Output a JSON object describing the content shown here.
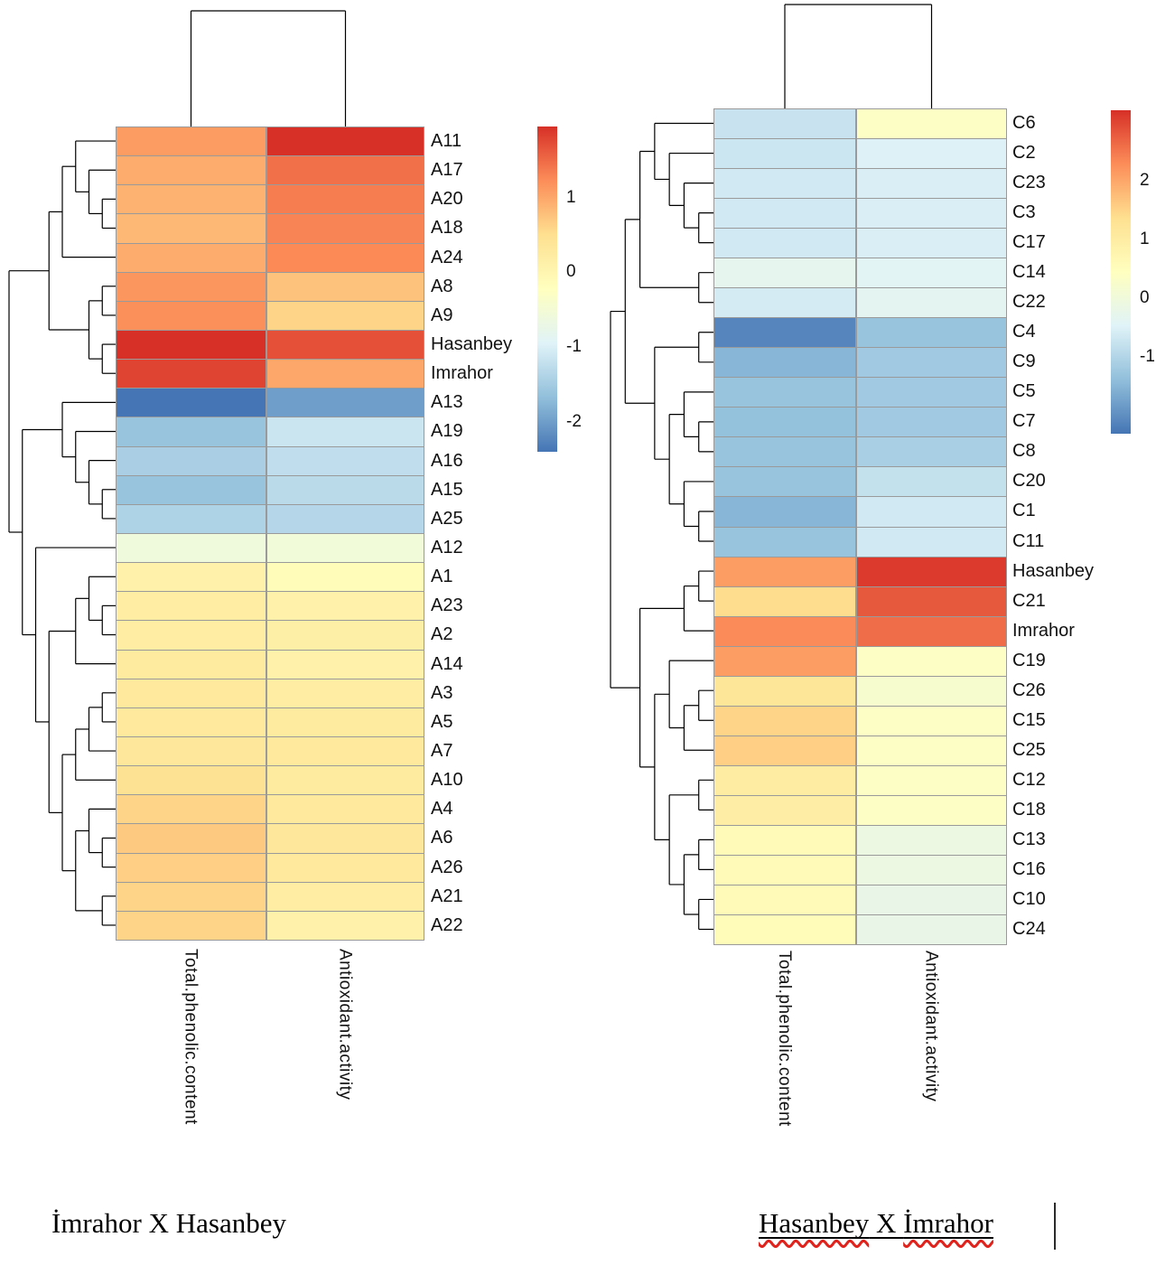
{
  "colormap": [
    "#4575b4",
    "#91bfdb",
    "#e0f3f8",
    "#ffffbf",
    "#fee090",
    "#fc8d59",
    "#d73027"
  ],
  "captions": {
    "left": "İmrahor X Hasanbey",
    "right_word1": "Hasanbey",
    "right_x": " X ",
    "right_word2": "İmrahor"
  },
  "chart_data": [
    {
      "type": "heatmap",
      "title": "İmrahor X Hasanbey",
      "columns": [
        "Total.phenolic.content",
        "Antioxidant.activity"
      ],
      "rows": [
        "A11",
        "A17",
        "A20",
        "A18",
        "A24",
        "A8",
        "A9",
        "Hasanbey",
        "Imrahor",
        "A13",
        "A19",
        "A16",
        "A15",
        "A25",
        "A12",
        "A1",
        "A23",
        "A2",
        "A14",
        "A3",
        "A5",
        "A7",
        "A10",
        "A4",
        "A6",
        "A26",
        "A21",
        "A22"
      ],
      "values": [
        [
          1.1,
          1.95
        ],
        [
          0.95,
          1.45
        ],
        [
          0.9,
          1.35
        ],
        [
          0.85,
          1.3
        ],
        [
          0.95,
          1.25
        ],
        [
          1.15,
          0.75
        ],
        [
          1.2,
          0.6
        ],
        [
          1.95,
          1.7
        ],
        [
          1.8,
          1.0
        ],
        [
          -2.4,
          -2.0
        ],
        [
          -1.6,
          -1.15
        ],
        [
          -1.45,
          -1.25
        ],
        [
          -1.6,
          -1.3
        ],
        [
          -1.4,
          -1.35
        ],
        [
          -0.6,
          -0.55
        ],
        [
          0.1,
          -0.15
        ],
        [
          0.2,
          0.1
        ],
        [
          0.2,
          0.15
        ],
        [
          0.25,
          0.1
        ],
        [
          0.3,
          0.2
        ],
        [
          0.3,
          0.25
        ],
        [
          0.35,
          0.3
        ],
        [
          0.45,
          0.25
        ],
        [
          0.6,
          0.3
        ],
        [
          0.7,
          0.35
        ],
        [
          0.65,
          0.3
        ],
        [
          0.6,
          0.2
        ],
        [
          0.6,
          0.1
        ]
      ],
      "zlim": [
        -2.4,
        1.95
      ],
      "legend_ticks": [
        1,
        0,
        -1,
        -2
      ],
      "grid": true,
      "legend_position": "right",
      "row_dendrogram": [
        [
          [
            [
              "A11",
              [
                "A17",
                [
                  "A20",
                  "A18"
                ]
              ]
            ],
            "A24"
          ],
          [
            [
              "A8",
              "A9"
            ],
            [
              "Hasanbey",
              "Imrahor"
            ]
          ]
        ],
        [
          [
            "A13",
            [
              "A19",
              [
                "A16",
                [
                  "A15",
                  "A25"
                ]
              ]
            ]
          ],
          [
            "A12",
            [
              [
                [
                  "A1",
                  [
                    "A23",
                    "A2"
                  ]
                ],
                "A14"
              ],
              [
                [
                  [
                    [
                      "A3",
                      "A5"
                    ],
                    "A7"
                  ],
                  "A10"
                ],
                [
                  [
                    "A4",
                    [
                      "A6",
                      "A26"
                    ]
                  ],
                  [
                    "A21",
                    "A22"
                  ]
                ]
              ]
            ]
          ]
        ]
      ],
      "col_dendrogram": [
        "Total.phenolic.content",
        "Antioxidant.activity"
      ]
    },
    {
      "type": "heatmap",
      "title": "Hasanbey X İmrahor",
      "columns": [
        "Total.phenolic.content",
        "Antioxidant.activity"
      ],
      "rows": [
        "C6",
        "C2",
        "C23",
        "C3",
        "C17",
        "C14",
        "C22",
        "C4",
        "C9",
        "C5",
        "C7",
        "C8",
        "C20",
        "C1",
        "C11",
        "Hasanbey",
        "C21",
        "Imrahor",
        "C19",
        "C26",
        "C15",
        "C25",
        "C12",
        "C18",
        "C13",
        "C16",
        "C10",
        "C24"
      ],
      "values": [
        [
          -0.75,
          0.35
        ],
        [
          -0.7,
          -0.5
        ],
        [
          -0.65,
          -0.55
        ],
        [
          -0.65,
          -0.55
        ],
        [
          -0.65,
          -0.55
        ],
        [
          -0.3,
          -0.4
        ],
        [
          -0.6,
          -0.35
        ],
        [
          -2.1,
          -1.3
        ],
        [
          -1.5,
          -1.2
        ],
        [
          -1.3,
          -1.2
        ],
        [
          -1.35,
          -1.2
        ],
        [
          -1.3,
          -1.1
        ],
        [
          -1.3,
          -0.8
        ],
        [
          -1.5,
          -0.65
        ],
        [
          -1.3,
          -0.65
        ],
        [
          2.1,
          3.1
        ],
        [
          1.4,
          2.8
        ],
        [
          2.3,
          2.6
        ],
        [
          2.1,
          0.35
        ],
        [
          1.2,
          0.2
        ],
        [
          1.5,
          0.35
        ],
        [
          1.55,
          0.35
        ],
        [
          1.0,
          0.35
        ],
        [
          0.95,
          0.35
        ],
        [
          0.6,
          -0.1
        ],
        [
          0.6,
          -0.1
        ],
        [
          0.6,
          -0.2
        ],
        [
          0.55,
          -0.2
        ]
      ],
      "zlim": [
        -2.3,
        3.2
      ],
      "legend_ticks": [
        2,
        1,
        0,
        -1
      ],
      "grid": true,
      "legend_position": "right",
      "row_dendrogram": [
        [
          [
            [
              "C6",
              [
                "C2",
                [
                  "C23",
                  [
                    "C3",
                    "C17"
                  ]
                ]
              ]
            ],
            [
              "C14",
              "C22"
            ]
          ],
          [
            [
              "C4",
              "C9"
            ],
            [
              [
                "C5",
                [
                  "C7",
                  "C8"
                ]
              ],
              [
                "C20",
                [
                  "C1",
                  "C11"
                ]
              ]
            ]
          ]
        ],
        [
          [
            [
              "Hasanbey",
              "C21"
            ],
            "Imrahor"
          ],
          [
            [
              "C19",
              [
                [
                  "C26",
                  "C15"
                ],
                "C25"
              ]
            ],
            [
              [
                "C12",
                "C18"
              ],
              [
                [
                  "C13",
                  "C16"
                ],
                [
                  "C10",
                  "C24"
                ]
              ]
            ]
          ]
        ]
      ],
      "col_dendrogram": [
        "Total.phenolic.content",
        "Antioxidant.activity"
      ]
    }
  ]
}
